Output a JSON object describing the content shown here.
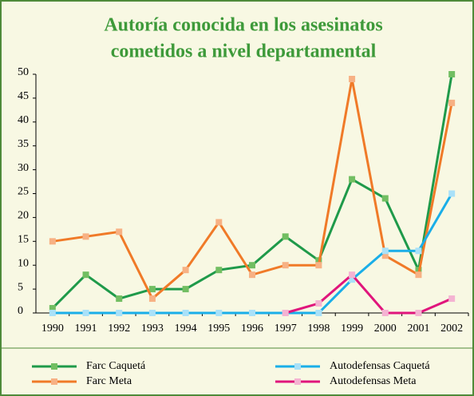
{
  "chart_data": {
    "type": "line",
    "title": [
      "Autoría conocida en los asesinatos",
      "cometidos a nivel departamental"
    ],
    "categories": [
      "1990",
      "1991",
      "1992",
      "1993",
      "1994",
      "1995",
      "1996",
      "1997",
      "1998",
      "1999",
      "2000",
      "2001",
      "2002"
    ],
    "series": [
      {
        "name": "Farc Caquetá",
        "color": "#1f9a4a",
        "marker_color": "#72be62",
        "values": [
          1,
          8,
          3,
          5,
          5,
          9,
          10,
          16,
          11,
          28,
          24,
          9,
          50
        ]
      },
      {
        "name": "Farc Meta",
        "color": "#f07a28",
        "marker_color": "#f7b184",
        "values": [
          15,
          16,
          17,
          3,
          9,
          19,
          8,
          10,
          10,
          49,
          12,
          8,
          44
        ]
      },
      {
        "name": "Autodefensas Caquetá",
        "color": "#1aaee8",
        "marker_color": "#a9e1f8",
        "values": [
          0,
          0,
          0,
          0,
          0,
          0,
          0,
          0,
          0,
          7,
          13,
          13,
          25
        ]
      },
      {
        "name": "Autodefensas Meta",
        "color": "#e0157c",
        "marker_color": "#f4b3d2",
        "values": [
          null,
          null,
          null,
          null,
          null,
          null,
          null,
          0,
          2,
          8,
          0,
          0,
          3
        ]
      }
    ],
    "ylim": [
      0,
      50
    ],
    "yticks": [
      0,
      5,
      10,
      15,
      20,
      25,
      30,
      35,
      40,
      45,
      50
    ]
  }
}
